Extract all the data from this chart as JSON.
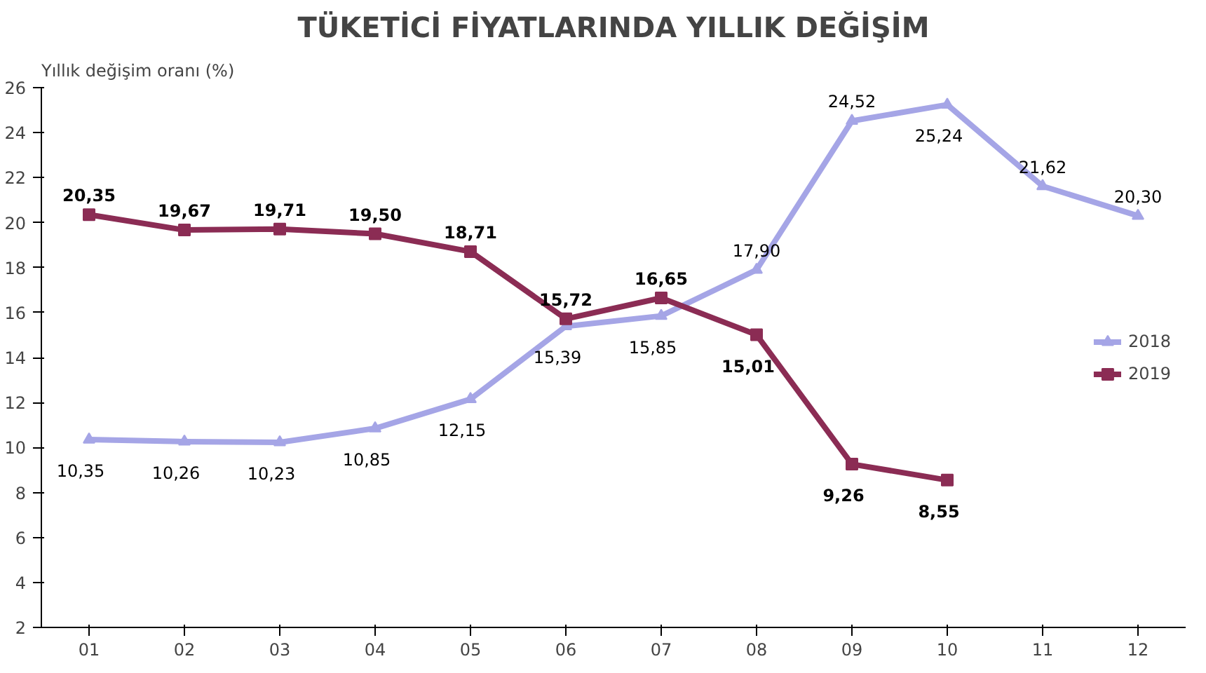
{
  "chart_data": {
    "type": "line",
    "title": "TÜKETİCİ FİYATLARINDA YILLIK DEĞİŞİM",
    "ylabel": "Yıllık değişim oranı (%)",
    "categories": [
      "01",
      "02",
      "03",
      "04",
      "05",
      "06",
      "07",
      "08",
      "09",
      "10",
      "11",
      "12"
    ],
    "ylim": [
      2,
      26
    ],
    "yticks": [
      2,
      4,
      6,
      8,
      10,
      12,
      14,
      16,
      18,
      20,
      22,
      24,
      26
    ],
    "grid": false,
    "legend": "right",
    "series": [
      {
        "name": "2018",
        "color": "#a5a5e6",
        "marker": "triangle",
        "values": [
          10.35,
          10.26,
          10.23,
          10.85,
          12.15,
          15.39,
          15.85,
          17.9,
          24.52,
          25.24,
          21.62,
          20.3
        ],
        "value_labels": [
          "10,35",
          "10,26",
          "10,23",
          "10,85",
          "12,15",
          "15,39",
          "15,85",
          "17,90",
          "24,52",
          "25,24",
          "21,62",
          "20,30"
        ]
      },
      {
        "name": "2019",
        "color": "#8b2c54",
        "marker": "square",
        "values": [
          20.35,
          19.67,
          19.71,
          19.5,
          18.71,
          15.72,
          16.65,
          15.01,
          9.26,
          8.55,
          null,
          null
        ],
        "value_labels": [
          "20,35",
          "19,67",
          "19,71",
          "19,50",
          "18,71",
          "15,72",
          "16,65",
          "15,01",
          "9,26",
          "8,55",
          null,
          null
        ]
      }
    ]
  }
}
